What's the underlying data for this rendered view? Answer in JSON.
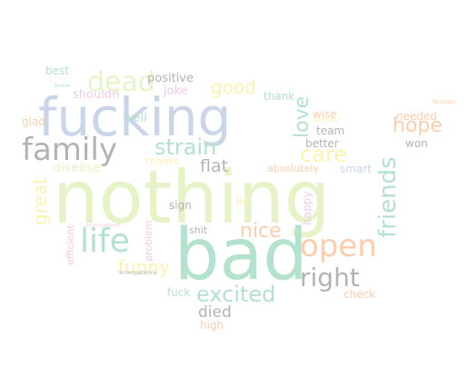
{
  "words": [
    {
      "id": "nothing",
      "text": "nothing",
      "color": "#e6f3c6"
    },
    {
      "id": "bad",
      "text": "bad",
      "color": "#b3e2cd"
    },
    {
      "id": "fucking",
      "text": "fucking",
      "color": "#cbd5e8"
    },
    {
      "id": "family",
      "text": "family",
      "color": "#b3b3b3"
    },
    {
      "id": "dead",
      "text": "dead",
      "color": "#e6f5c9"
    },
    {
      "id": "life",
      "text": "life",
      "color": "#b3e2cd"
    },
    {
      "id": "open",
      "text": "open",
      "color": "#fdcdac"
    },
    {
      "id": "friends",
      "text": "friends",
      "color": "#b3e2cd"
    },
    {
      "id": "right",
      "text": "right",
      "color": "#b3b3b3"
    },
    {
      "id": "strain",
      "text": "strain",
      "color": "#b3e2cd"
    },
    {
      "id": "excited",
      "text": "excited",
      "color": "#b3e2cd"
    },
    {
      "id": "care",
      "text": "care",
      "color": "#fff2ae"
    },
    {
      "id": "nice",
      "text": "nice",
      "color": "#fdcdac"
    },
    {
      "id": "funny",
      "text": "funny",
      "color": "#fff2ae"
    },
    {
      "id": "great",
      "text": "great",
      "color": "#fff2ae"
    },
    {
      "id": "love",
      "text": "love",
      "color": "#b3e2cd"
    },
    {
      "id": "hope",
      "text": "hope",
      "color": "#fdcdac"
    },
    {
      "id": "good",
      "text": "good",
      "color": "#fff2ae"
    },
    {
      "id": "flat",
      "text": "flat",
      "color": "#b3b3b3"
    },
    {
      "id": "disease",
      "text": "disease",
      "color": "#e6f5c9"
    },
    {
      "id": "positive",
      "text": "positive",
      "color": "#b3b3b3"
    },
    {
      "id": "joke",
      "text": "joke",
      "color": "#f4cae4"
    },
    {
      "id": "died",
      "text": "died",
      "color": "#b3b3b3"
    },
    {
      "id": "shouldn",
      "text": "shouldn",
      "color": "#f4cae4"
    },
    {
      "id": "best",
      "text": "best",
      "color": "#b3e2cd"
    },
    {
      "id": "thank",
      "text": "thank",
      "color": "#b3e2cd"
    },
    {
      "id": "well",
      "text": "well",
      "color": "#b3e2cd"
    },
    {
      "id": "wise",
      "text": "wise",
      "color": "#fdcdac"
    },
    {
      "id": "team",
      "text": "team",
      "color": "#b3b3b3"
    },
    {
      "id": "better",
      "text": "better",
      "color": "#b3b3b3"
    },
    {
      "id": "smart",
      "text": "smart",
      "color": "#cbd5e8"
    },
    {
      "id": "absolutely",
      "text": "absolutely",
      "color": "#fdcdac"
    },
    {
      "id": "thanks",
      "text": "thanks",
      "color": "#fff2ae"
    },
    {
      "id": "needed",
      "text": "needed",
      "color": "#fdcdac"
    },
    {
      "id": "won",
      "text": "won",
      "color": "#b3b3b3"
    },
    {
      "id": "glad",
      "text": "glad",
      "color": "#fdcdac"
    },
    {
      "id": "sign",
      "text": "sign",
      "color": "#b3b3b3"
    },
    {
      "id": "lie",
      "text": "lie",
      "color": "#fff2ae"
    },
    {
      "id": "shit",
      "text": "shit",
      "color": "#b3b3b3"
    },
    {
      "id": "problem",
      "text": "problem",
      "color": "#f4cae4"
    },
    {
      "id": "efficient",
      "text": "efficient",
      "color": "#f4cae4"
    },
    {
      "id": "happy",
      "text": "happy",
      "color": "#f4cae4"
    },
    {
      "id": "fuck",
      "text": "fuck",
      "color": "#b3e2cd"
    },
    {
      "id": "check",
      "text": "check",
      "color": "#fdcdac"
    },
    {
      "id": "high",
      "text": "high",
      "color": "#fdcdac"
    },
    {
      "id": "incompetence",
      "text": "incompetence",
      "color": "#b3b3b3"
    },
    {
      "id": "incompetent",
      "text": "incompetent",
      "color": "#f4cae4"
    },
    {
      "id": "brave",
      "text": "brave",
      "color": "#b3e2cd"
    },
    {
      "id": "tiny1",
      "text": "fantastic",
      "color": "#fdcdac"
    },
    {
      "id": "tiny2",
      "text": "wonderful",
      "color": "#fff2ae"
    }
  ]
}
